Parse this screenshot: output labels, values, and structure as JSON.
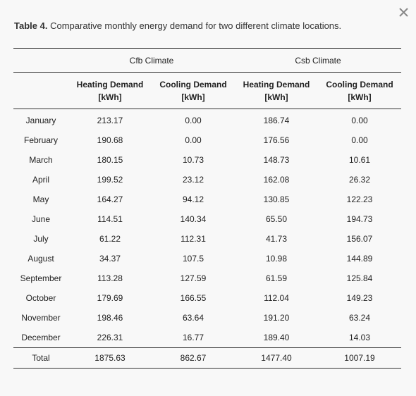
{
  "caption": {
    "label": "Table 4.",
    "text": "Comparative monthly energy demand for two different climate locations."
  },
  "table": {
    "groups": [
      "Cfb Climate",
      "Csb Climate"
    ],
    "columns": [
      "Heating Demand [kWh]",
      "Cooling Demand [kWh]",
      "Heating Demand [kWh]",
      "Cooling Demand [kWh]"
    ],
    "rows": [
      [
        "January",
        "213.17",
        "0.00",
        "186.74",
        "0.00"
      ],
      [
        "February",
        "190.68",
        "0.00",
        "176.56",
        "0.00"
      ],
      [
        "March",
        "180.15",
        "10.73",
        "148.73",
        "10.61"
      ],
      [
        "April",
        "199.52",
        "23.12",
        "162.08",
        "26.32"
      ],
      [
        "May",
        "164.27",
        "94.12",
        "130.85",
        "122.23"
      ],
      [
        "June",
        "114.51",
        "140.34",
        "65.50",
        "194.73"
      ],
      [
        "July",
        "61.22",
        "112.31",
        "41.73",
        "156.07"
      ],
      [
        "August",
        "34.37",
        "107.5",
        "10.98",
        "144.89"
      ],
      [
        "September",
        "113.28",
        "127.59",
        "61.59",
        "125.84"
      ],
      [
        "October",
        "179.69",
        "166.55",
        "112.04",
        "149.23"
      ],
      [
        "November",
        "198.46",
        "63.64",
        "191.20",
        "63.24"
      ],
      [
        "December",
        "226.31",
        "16.77",
        "189.40",
        "14.03"
      ]
    ],
    "total": [
      "Total",
      "1875.63",
      "862.67",
      "1477.40",
      "1007.19"
    ]
  }
}
